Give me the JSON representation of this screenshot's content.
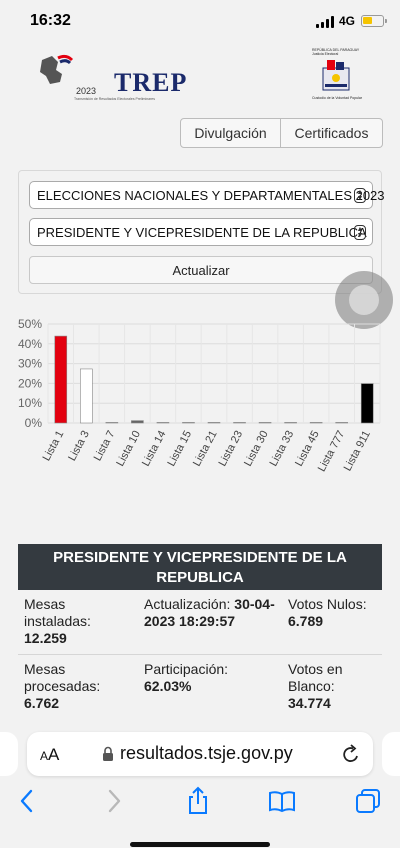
{
  "status_bar": {
    "time": "16:32",
    "network": "4G"
  },
  "header": {
    "trep_title": "TREP",
    "trep_year": "2023",
    "trep_subtitle": "Transmisión de Resultados Electorales Preliminares",
    "tsje_top": "REPÚBLICA DEL PARAGUAY Justicia Electoral",
    "tsje_bottom": "Custodio de la Voluntad Popular"
  },
  "tabs": {
    "divulgacion": "Divulgación",
    "certificados": "Certificados"
  },
  "filters": {
    "election": "ELECCIONES NACIONALES Y DEPARTAMENTALES 2023",
    "office": "PRESIDENTE Y VICEPRESIDENTE DE LA REPUBLICA",
    "update_label": "Actualizar"
  },
  "chart_data": {
    "type": "bar",
    "categories": [
      "Lista 1",
      "Lista 3",
      "Lista 7",
      "Lista 10",
      "Lista 14",
      "Lista 15",
      "Lista 21",
      "Lista 23",
      "Lista 30",
      "Lista 33",
      "Lista 45",
      "Lista 777",
      "Lista 911"
    ],
    "values": [
      43.9,
      27.3,
      0.1,
      1.2,
      0.1,
      0.1,
      0.3,
      0.1,
      0.1,
      0.1,
      0.1,
      0.1,
      19.9
    ],
    "bar_colors": [
      "#e3000f",
      "#ffffff",
      "#ffffff",
      "#666666",
      "#ffffff",
      "#ffffff",
      "#888888",
      "#ffffff",
      "#ffffff",
      "#ffffff",
      "#ffffff",
      "#ffffff",
      "#000000"
    ],
    "y_ticks": [
      "0%",
      "10%",
      "20%",
      "30%",
      "40%",
      "50%"
    ],
    "ylim": [
      0,
      50
    ],
    "grid": true
  },
  "results": {
    "title": "PRESIDENTE Y VICEPRESIDENTE DE LA REPUBLICA",
    "mesas_instaladas_label": "Mesas instaladas:",
    "mesas_instaladas_value": "12.259",
    "actualizacion_label": "Actualización:",
    "actualizacion_value": "30-04-2023 18:29:57",
    "votos_nulos_label": "Votos Nulos:",
    "votos_nulos_value": "6.789",
    "mesas_procesadas_label": "Mesas procesadas:",
    "mesas_procesadas_value": "6.762",
    "participacion_label": "Participación:",
    "participacion_value": "62.03%",
    "votos_blanco_label": "Votos en Blanco:",
    "votos_blanco_value": "34.774"
  },
  "browser": {
    "aa_label": "AA",
    "url": "resultados.tsje.gov.py"
  },
  "colors": {
    "accent_red": "#e3000f",
    "header_dark": "#343a40",
    "ios_blue": "#0a7aff"
  }
}
